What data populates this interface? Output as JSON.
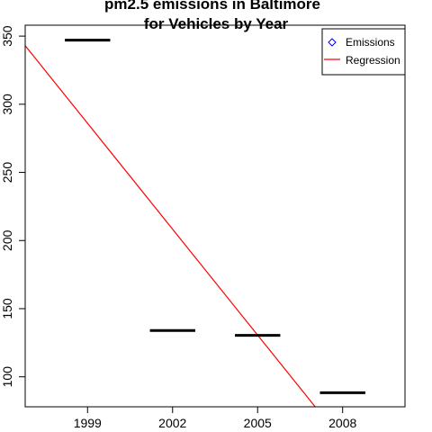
{
  "chart_data": {
    "type": "line",
    "title_lines": [
      "pm2.5 emissions in Baltimore",
      "for Vehicles by Year"
    ],
    "xlabel": "",
    "ylabel": "",
    "xlim": [
      1996.8,
      2010.2
    ],
    "ylim": [
      78,
      358
    ],
    "x_ticks": [
      1999,
      2002,
      2005,
      2008
    ],
    "x_tick_labels": [
      "1999",
      "2002",
      "2005",
      "2008"
    ],
    "y_ticks": [
      100,
      150,
      200,
      250,
      300,
      350
    ],
    "y_tick_labels": [
      "100",
      "150",
      "200",
      "250",
      "300",
      "350"
    ],
    "grid": false,
    "legend_position": "top-right",
    "series": [
      {
        "name": "Emissions",
        "style": "segments",
        "color": "#000000",
        "marker_color": "#0000ff",
        "points": [
          {
            "x": 1999,
            "y": 347
          },
          {
            "x": 2002,
            "y": 134
          },
          {
            "x": 2005,
            "y": 130.4
          },
          {
            "x": 2008,
            "y": 88.3
          }
        ]
      },
      {
        "name": "Regression",
        "style": "line",
        "color": "#ff0000",
        "intercept_at_x0": 343,
        "x0": 1996.8,
        "slope": -25.9
      }
    ],
    "legend": [
      {
        "label": "Emissions",
        "marker": "diamond-open",
        "color": "#0000ff"
      },
      {
        "label": "Regression",
        "marker": "line",
        "color": "#ff0000"
      }
    ]
  }
}
